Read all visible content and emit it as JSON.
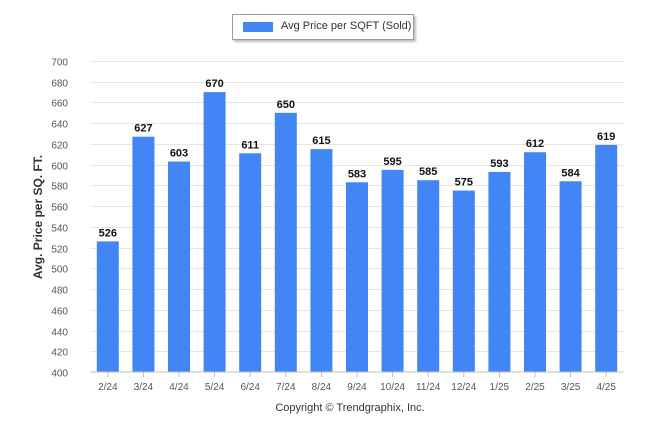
{
  "legend": {
    "label": "Avg Price per SQFT (Sold)"
  },
  "footer": {
    "copyright": "Copyright © Trendgraphix, Inc."
  },
  "chart_data": {
    "type": "bar",
    "ylabel": "Avg. Price per SQ. FT.",
    "xlabel": "",
    "ylim": [
      400,
      700
    ],
    "yticks": [
      400,
      420,
      440,
      460,
      480,
      500,
      520,
      540,
      560,
      580,
      600,
      620,
      640,
      660,
      680,
      700
    ],
    "grid": true,
    "legend_position": "top-center",
    "categories": [
      "2/24",
      "3/24",
      "4/24",
      "5/24",
      "6/24",
      "7/24",
      "8/24",
      "9/24",
      "10/24",
      "11/24",
      "12/24",
      "1/25",
      "2/25",
      "3/25",
      "4/25"
    ],
    "series": [
      {
        "name": "Avg Price per SQFT (Sold)",
        "color": "#4285f4",
        "values": [
          526,
          627,
          603,
          670,
          611,
          650,
          615,
          583,
          595,
          585,
          575,
          593,
          612,
          584,
          619
        ]
      }
    ]
  }
}
